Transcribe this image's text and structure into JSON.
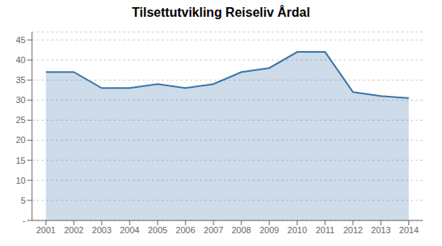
{
  "chart_data": {
    "type": "area",
    "title": "Tilsettutvikling Reiseliv Årdal",
    "x": [
      2001,
      2002,
      2003,
      2004,
      2005,
      2006,
      2007,
      2008,
      2009,
      2010,
      2011,
      2012,
      2013,
      2014
    ],
    "values": [
      37,
      37,
      33,
      33,
      34,
      33,
      34,
      37,
      38,
      42,
      42,
      32,
      31,
      30.5
    ],
    "color": "#3a75a8",
    "xlim": [
      2000.5,
      2014.5
    ],
    "xticks": [
      2001,
      2002,
      2003,
      2004,
      2005,
      2006,
      2007,
      2008,
      2009,
      2010,
      2011,
      2012,
      2013,
      2014
    ],
    "ylim": [
      0,
      47
    ],
    "yticks": [
      {
        "value": 0,
        "label": "-"
      },
      5,
      10,
      15,
      20,
      25,
      30,
      35,
      40,
      45
    ],
    "grid": "y"
  }
}
